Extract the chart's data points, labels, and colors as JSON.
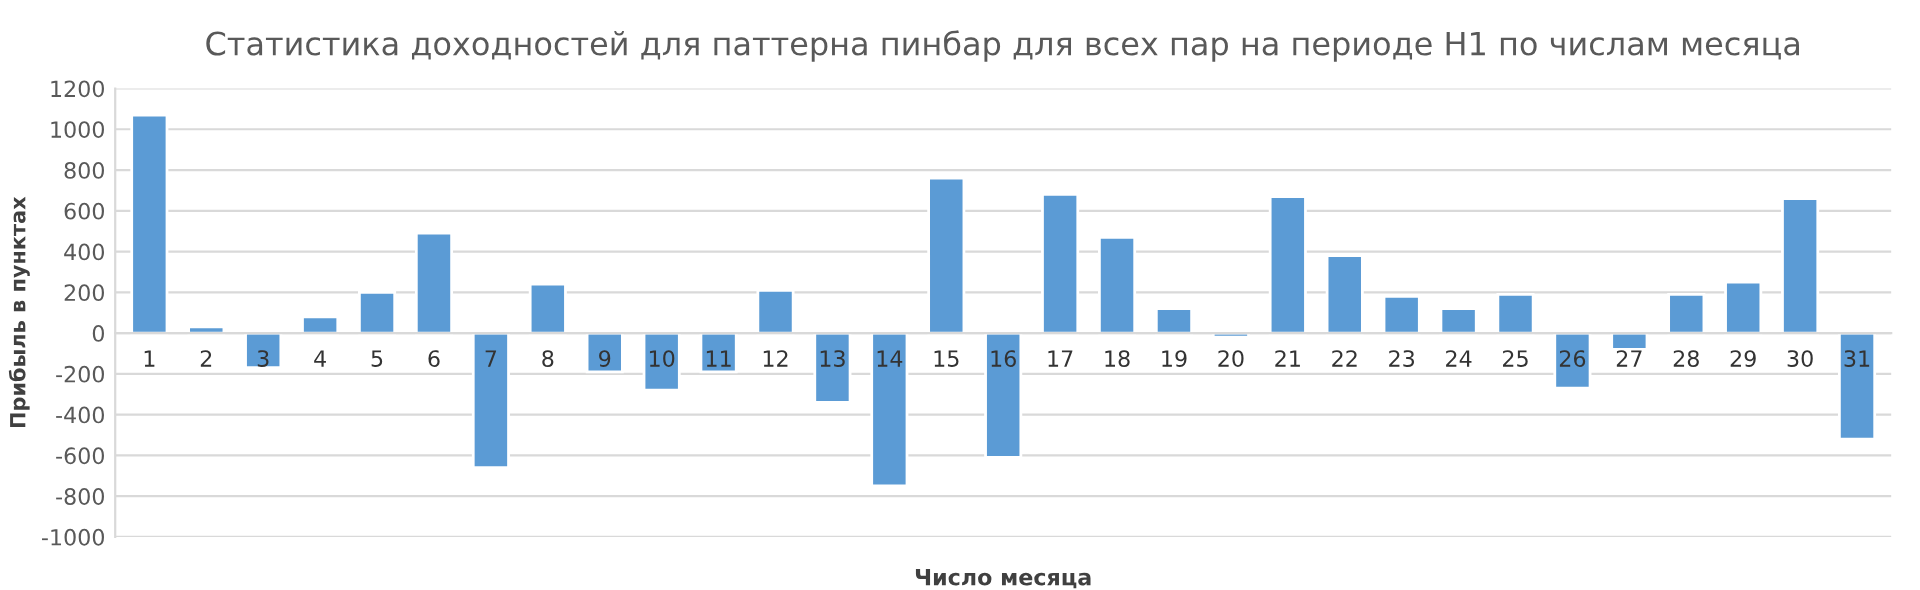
{
  "chart_data": {
    "type": "bar",
    "title": "Статистика доходностей для паттерна пинбар для всех пар на периоде H1 по числам месяца",
    "xlabel": "Число месяца",
    "ylabel": "Прибыль в пунктах",
    "categories": [
      "1",
      "2",
      "3",
      "4",
      "5",
      "6",
      "7",
      "8",
      "9",
      "10",
      "11",
      "12",
      "13",
      "14",
      "15",
      "16",
      "17",
      "18",
      "19",
      "20",
      "21",
      "22",
      "23",
      "24",
      "25",
      "26",
      "27",
      "28",
      "29",
      "30",
      "31"
    ],
    "values": [
      1070,
      30,
      -170,
      80,
      200,
      490,
      -660,
      240,
      -190,
      -280,
      -190,
      210,
      -340,
      -750,
      760,
      -610,
      680,
      470,
      120,
      -20,
      670,
      380,
      180,
      120,
      190,
      -270,
      -80,
      190,
      250,
      660,
      -520
    ],
    "color": "#5b9bd5",
    "ylim": [
      -1000,
      1200
    ],
    "yticks": [
      -1000,
      -800,
      -600,
      -400,
      -200,
      0,
      200,
      400,
      600,
      800,
      1000,
      1200
    ],
    "grid": "y",
    "legend": false
  }
}
